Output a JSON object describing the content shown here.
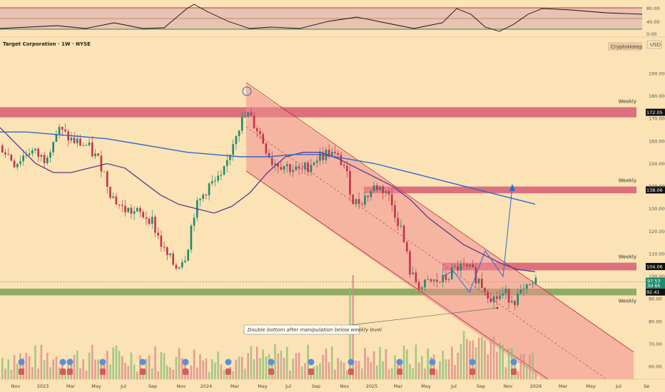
{
  "header": {
    "title": "Target Corporation · 1W · NYSE",
    "currency": "USD",
    "author": "CryptoHotep"
  },
  "chart_data": {
    "type": "candlestick",
    "price_axis": {
      "ticks": [
        190,
        180,
        170,
        160,
        150,
        140,
        130,
        120,
        110,
        100,
        90,
        80,
        70,
        60
      ],
      "tick_labels": [
        "190.00",
        "180.00",
        "170.00",
        "160.00",
        "150.00",
        "140.00",
        "130.00",
        "120.00",
        "110.00",
        "100.00",
        "90.00",
        "80.00",
        "70.00",
        "60.00"
      ]
    },
    "oscillator_axis": {
      "ticks": [
        "80.00",
        "40.00",
        "0.00"
      ]
    },
    "x_axis": {
      "labels": [
        "Nov",
        "2023",
        "Mar",
        "May",
        "Jul",
        "Sep",
        "Nov",
        "2024",
        "Mar",
        "May",
        "Jul",
        "Sep",
        "Nov",
        "2025",
        "Mar",
        "May",
        "Jul",
        "Sep",
        "Nov",
        "2026",
        "Mar",
        "May",
        "Jul",
        "Se"
      ]
    },
    "zones": [
      {
        "label": "Weekly",
        "low": 170.5,
        "high": 175.0,
        "tag": "172.05",
        "color": "#d24a6a"
      },
      {
        "label": "Weekly",
        "low": 136.8,
        "high": 139.8,
        "tag": "138.06",
        "color": "#d24a6a"
      },
      {
        "label": "Weekly",
        "low": 102.6,
        "high": 106.0,
        "tag": "104.06",
        "color": "#d24a6a"
      },
      {
        "label": "Weekly",
        "low": 91.5,
        "high": 94.5,
        "tag": "92.41",
        "color": "#6a9a4a"
      }
    ],
    "current_price": {
      "value": "97.53",
      "countdown": "3d 6h",
      "color": "#1e8a6e"
    },
    "annotation": "Double bottom after manipulation below weekly level",
    "ma_short": [
      166,
      158,
      150,
      146,
      146,
      148,
      150,
      148,
      142,
      136,
      132,
      130,
      128,
      131,
      137,
      146,
      153,
      155,
      155,
      152,
      148,
      144,
      140,
      134,
      126,
      120,
      114,
      110,
      106,
      103,
      102
    ],
    "ma_long": [
      164,
      164,
      163,
      162,
      161,
      159,
      157,
      155,
      154,
      153,
      153,
      154,
      154,
      152,
      150,
      147,
      144,
      141,
      138,
      135,
      132
    ]
  },
  "colors": {
    "background": "#fbe3b5",
    "up": "#1e8a6e",
    "down": "#c2334a",
    "ma_blue": "#2a6ad0",
    "ma_purple": "#5a3a8e"
  }
}
